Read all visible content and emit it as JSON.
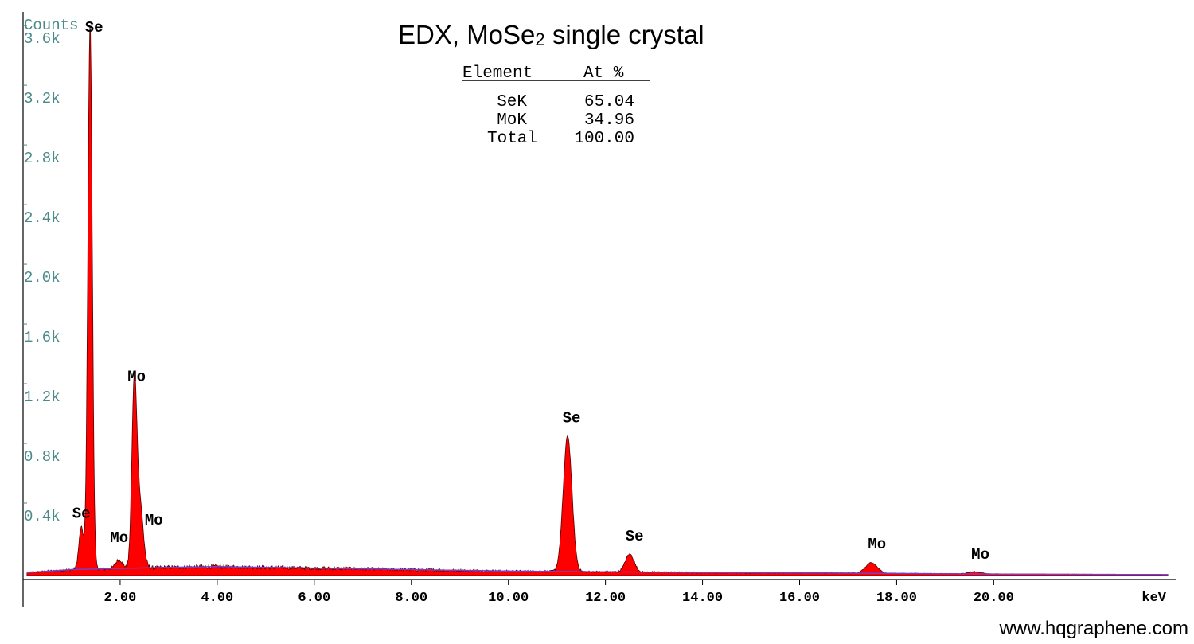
{
  "title_main": "EDX, MoSe",
  "title_subscript": "2",
  "title_rest": " single crystal",
  "table": {
    "headers": [
      "Element",
      "At %"
    ],
    "rows": [
      {
        "element": "SeK",
        "at": "65.04"
      },
      {
        "element": "MoK",
        "at": "34.96"
      },
      {
        "element": "Total",
        "at": "100.00"
      }
    ]
  },
  "credit": "www.hqgraphene.com",
  "chart_data": {
    "type": "area",
    "title": "EDX, MoSe2 single crystal",
    "ylabel": "Counts",
    "xlabel": "keV",
    "xlim": [
      0,
      23.75
    ],
    "ylim": [
      0,
      3.75
    ],
    "y_unit_note": "k counts",
    "x_ticks": [
      "2.00",
      "4.00",
      "6.00",
      "8.00",
      "10.00",
      "12.00",
      "14.00",
      "16.00",
      "18.00",
      "20.00"
    ],
    "y_ticks": [
      "0.4k",
      "0.8k",
      "1.2k",
      "1.6k",
      "2.0k",
      "2.4k",
      "2.8k",
      "3.2k",
      "3.6k"
    ],
    "fill_color": "#ff0000",
    "background_line_color": "#7b3fc4",
    "peaks": [
      {
        "label": "Se",
        "x": 1.2,
        "y": 0.28,
        "width": 0.05
      },
      {
        "label": "Se",
        "x": 1.38,
        "y": 3.66,
        "width": 0.045
      },
      {
        "label": "Mo",
        "x": 1.98,
        "y": 0.06,
        "width": 0.07
      },
      {
        "label": "Mo",
        "x": 2.29,
        "y": 1.18,
        "width": 0.05
      },
      {
        "label": "Mo",
        "x": 2.4,
        "y": 0.45,
        "width": 0.07
      },
      {
        "label": "Se",
        "x": 11.22,
        "y": 0.91,
        "width": 0.09
      },
      {
        "label": "Se",
        "x": 12.5,
        "y": 0.12,
        "width": 0.09
      },
      {
        "label": "Mo",
        "x": 17.48,
        "y": 0.07,
        "width": 0.12
      },
      {
        "label": "Mo",
        "x": 19.61,
        "y": 0.015,
        "width": 0.13
      }
    ],
    "background": [
      {
        "x": 0.1,
        "y": 0.02
      },
      {
        "x": 1.0,
        "y": 0.04
      },
      {
        "x": 3.0,
        "y": 0.055
      },
      {
        "x": 4.0,
        "y": 0.06
      },
      {
        "x": 6.0,
        "y": 0.05
      },
      {
        "x": 8.0,
        "y": 0.04
      },
      {
        "x": 10.0,
        "y": 0.03
      },
      {
        "x": 12.0,
        "y": 0.025
      },
      {
        "x": 14.0,
        "y": 0.02
      },
      {
        "x": 16.0,
        "y": 0.018
      },
      {
        "x": 18.0,
        "y": 0.014
      },
      {
        "x": 20.0,
        "y": 0.01
      },
      {
        "x": 23.6,
        "y": 0.006
      }
    ]
  }
}
